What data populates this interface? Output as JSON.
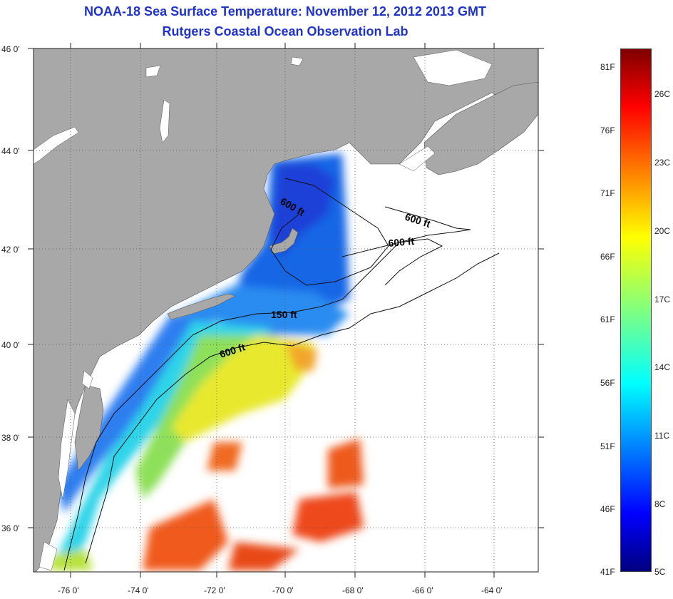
{
  "title": {
    "line1": "NOAA-18 Sea Surface Temperature:  November 12, 2012 2013 GMT",
    "line2": "Rutgers Coastal Ocean Observation Lab"
  },
  "map": {
    "latitude_labels": [
      "46 0'",
      "44 0'",
      "42 0'",
      "40 0'",
      "38 0'",
      "36 0'"
    ],
    "longitude_labels": [
      "-76 0'",
      "-74 0'",
      "-72 0'",
      "-70 0'",
      "-68 0'",
      "-66 0'",
      "-64 0'"
    ],
    "contour_labels": [
      {
        "text": "600 ft"
      },
      {
        "text": "600 ft"
      },
      {
        "text": "600 ft"
      },
      {
        "text": "150 ft"
      },
      {
        "text": "600 ft"
      }
    ],
    "land_color": "#a8a8a8",
    "ocean_color": "#ffffff"
  },
  "colorbar": {
    "fahrenheit_labels": [
      "81F",
      "76F",
      "71F",
      "66F",
      "61F",
      "56F",
      "51F",
      "46F",
      "41F"
    ],
    "celsius_labels": [
      "26C",
      "23C",
      "20C",
      "17C",
      "14C",
      "11C",
      "8C",
      "5C"
    ],
    "min_c": 5,
    "max_c": 27.2,
    "colormap": "jet"
  }
}
